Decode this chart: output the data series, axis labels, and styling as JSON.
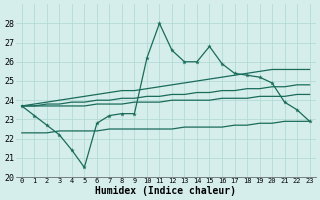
{
  "xlabel": "Humidex (Indice chaleur)",
  "x": [
    0,
    1,
    2,
    3,
    4,
    5,
    6,
    7,
    8,
    9,
    10,
    11,
    12,
    13,
    14,
    15,
    16,
    17,
    18,
    19,
    20,
    21,
    22,
    23
  ],
  "line_main": [
    23.7,
    23.2,
    22.7,
    22.2,
    21.4,
    20.5,
    22.8,
    23.2,
    23.3,
    23.3,
    26.2,
    28.0,
    26.6,
    26.0,
    26.0,
    26.8,
    25.9,
    25.4,
    25.3,
    25.2,
    24.9,
    23.9,
    23.5,
    22.9
  ],
  "line_top": [
    23.7,
    23.8,
    23.9,
    24.0,
    24.1,
    24.2,
    24.3,
    24.4,
    24.5,
    24.5,
    24.6,
    24.7,
    24.8,
    24.9,
    25.0,
    25.1,
    25.2,
    25.3,
    25.4,
    25.5,
    25.6,
    25.6,
    25.6,
    25.6
  ],
  "line_mid": [
    23.7,
    23.7,
    23.8,
    23.8,
    23.9,
    23.9,
    24.0,
    24.0,
    24.1,
    24.1,
    24.2,
    24.2,
    24.3,
    24.3,
    24.4,
    24.4,
    24.5,
    24.5,
    24.6,
    24.6,
    24.7,
    24.7,
    24.8,
    24.8
  ],
  "line_low": [
    23.7,
    23.7,
    23.7,
    23.7,
    23.7,
    23.7,
    23.8,
    23.8,
    23.8,
    23.9,
    23.9,
    23.9,
    24.0,
    24.0,
    24.0,
    24.0,
    24.1,
    24.1,
    24.1,
    24.2,
    24.2,
    24.2,
    24.3,
    24.3
  ],
  "line_bottom": [
    22.3,
    22.3,
    22.3,
    22.4,
    22.4,
    22.4,
    22.4,
    22.5,
    22.5,
    22.5,
    22.5,
    22.5,
    22.5,
    22.6,
    22.6,
    22.6,
    22.6,
    22.7,
    22.7,
    22.8,
    22.8,
    22.9,
    22.9,
    22.9
  ],
  "color": "#1a6b5a",
  "bg_color": "#d5eeeb",
  "grid_color": "#aed8d4",
  "ylim": [
    20,
    29
  ],
  "yticks": [
    20,
    21,
    22,
    23,
    24,
    25,
    26,
    27,
    28
  ],
  "xlim": [
    -0.5,
    23.5
  ]
}
